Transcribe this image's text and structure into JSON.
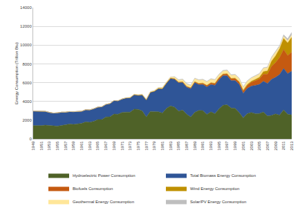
{
  "chart_data": {
    "type": "area",
    "stacked": true,
    "grid": true,
    "legend": "bottom",
    "y_label": "Energy Consumption (Trillion Btu)",
    "ylim": [
      0,
      14000
    ],
    "yticks": [
      0,
      2000,
      4000,
      6000,
      8000,
      10000,
      12000,
      14000
    ],
    "categories": [
      "1949",
      null,
      "1951",
      null,
      "1953",
      null,
      "1955",
      null,
      "1957",
      null,
      "1959",
      null,
      "1961",
      null,
      "1963",
      null,
      "1965",
      null,
      "1967",
      null,
      "1969",
      null,
      "1971",
      null,
      "1973",
      null,
      "1975",
      null,
      "1977",
      null,
      "1979",
      null,
      "1981",
      null,
      "1983",
      null,
      "1985",
      null,
      "1987",
      null,
      "1989",
      null,
      "1991",
      null,
      "1993",
      null,
      "1995",
      null,
      "1997",
      null,
      "1999",
      null,
      "2001",
      null,
      "2003",
      null,
      "2005",
      null,
      "2007",
      null,
      "2009",
      null,
      "2011",
      null,
      "2013"
    ],
    "series": [
      {
        "name": "Hydroelectric Power Consumption",
        "color": "#4f6228",
        "values": [
          1425,
          1415,
          1424,
          1466,
          1413,
          1360,
          1360,
          1435,
          1516,
          1592,
          1548,
          1608,
          1656,
          1816,
          1771,
          1886,
          2059,
          2062,
          2347,
          2349,
          2648,
          2634,
          2824,
          2864,
          2861,
          3177,
          3155,
          2976,
          2333,
          2937,
          2931,
          2900,
          2758,
          3266,
          3527,
          3386,
          2970,
          3071,
          2635,
          2334,
          2837,
          3046,
          3016,
          2617,
          2892,
          2683,
          3205,
          3590,
          3640,
          3297,
          3268,
          2811,
          2242,
          2689,
          2825,
          2690,
          2703,
          2869,
          2446,
          2511,
          2669,
          2539,
          3103,
          2629,
          2562
        ]
      },
      {
        "name": "Total Biomass Energy Consumption",
        "color": "#2f5597",
        "values": [
          1549,
          1562,
          1535,
          1474,
          1419,
          1394,
          1424,
          1416,
          1334,
          1323,
          1353,
          1320,
          1295,
          1300,
          1323,
          1337,
          1335,
          1369,
          1340,
          1419,
          1440,
          1431,
          1432,
          1503,
          1529,
          1540,
          1499,
          1713,
          1838,
          2038,
          2152,
          2476,
          2596,
          2663,
          2904,
          2971,
          3016,
          2932,
          2875,
          3016,
          3160,
          2735,
          2782,
          2932,
          2908,
          3028,
          3101,
          3157,
          3105,
          2927,
          2963,
          3006,
          2624,
          2705,
          2805,
          3023,
          3114,
          3277,
          3473,
          3852,
          3899,
          4325,
          4419,
          4340,
          4670
        ]
      },
      {
        "name": "Biofuels Consumption",
        "color": "#c55a11",
        "values": [
          0,
          0,
          0,
          0,
          0,
          0,
          0,
          0,
          0,
          0,
          0,
          0,
          0,
          0,
          0,
          0,
          0,
          0,
          0,
          0,
          0,
          0,
          0,
          0,
          0,
          0,
          0,
          0,
          0,
          0,
          0,
          0,
          13,
          32,
          48,
          65,
          79,
          92,
          98,
          101,
          93,
          111,
          129,
          145,
          169,
          188,
          200,
          145,
          186,
          205,
          211,
          233,
          254,
          308,
          404,
          500,
          577,
          771,
          991,
          1372,
          1567,
          1837,
          2029,
          1934,
          2014
        ]
      },
      {
        "name": "Wind Energy Consumption",
        "color": "#bf9000",
        "values": [
          0,
          0,
          0,
          0,
          0,
          0,
          0,
          0,
          0,
          0,
          0,
          0,
          0,
          0,
          0,
          0,
          0,
          0,
          0,
          0,
          0,
          0,
          0,
          0,
          0,
          0,
          0,
          0,
          0,
          0,
          0,
          0,
          0,
          0,
          0,
          0,
          0,
          0,
          0,
          0,
          22,
          29,
          31,
          30,
          31,
          36,
          33,
          33,
          34,
          31,
          46,
          57,
          70,
          105,
          115,
          142,
          178,
          264,
          341,
          546,
          721,
          923,
          1168,
          1340,
          1601
        ]
      },
      {
        "name": "Geothermal Energy Consumption",
        "color": "#ffe699",
        "values": [
          0,
          0,
          0,
          0,
          0,
          0,
          0,
          0,
          0,
          0,
          0,
          1,
          2,
          2,
          4,
          4,
          4,
          4,
          7,
          8,
          10,
          11,
          12,
          31,
          43,
          53,
          70,
          78,
          77,
          64,
          84,
          110,
          123,
          105,
          129,
          165,
          198,
          219,
          229,
          217,
          317,
          336,
          346,
          349,
          364,
          338,
          294,
          316,
          325,
          328,
          331,
          317,
          311,
          328,
          331,
          341,
          343,
          343,
          349,
          358,
          373,
          208,
          212,
          212,
          214
        ]
      },
      {
        "name": "Solar/PV Energy Consumption",
        "color": "#bfbfbf",
        "values": [
          0,
          0,
          0,
          0,
          0,
          0,
          0,
          0,
          0,
          0,
          0,
          0,
          0,
          0,
          0,
          0,
          0,
          0,
          0,
          0,
          0,
          0,
          0,
          0,
          0,
          0,
          0,
          0,
          0,
          0,
          0,
          0,
          0,
          0,
          0,
          55,
          64,
          70,
          72,
          71,
          58,
          59,
          62,
          64,
          66,
          68,
          69,
          70,
          70,
          69,
          68,
          66,
          65,
          64,
          64,
          65,
          66,
          71,
          76,
          89,
          98,
          126,
          171,
          227,
          307
        ]
      }
    ]
  }
}
